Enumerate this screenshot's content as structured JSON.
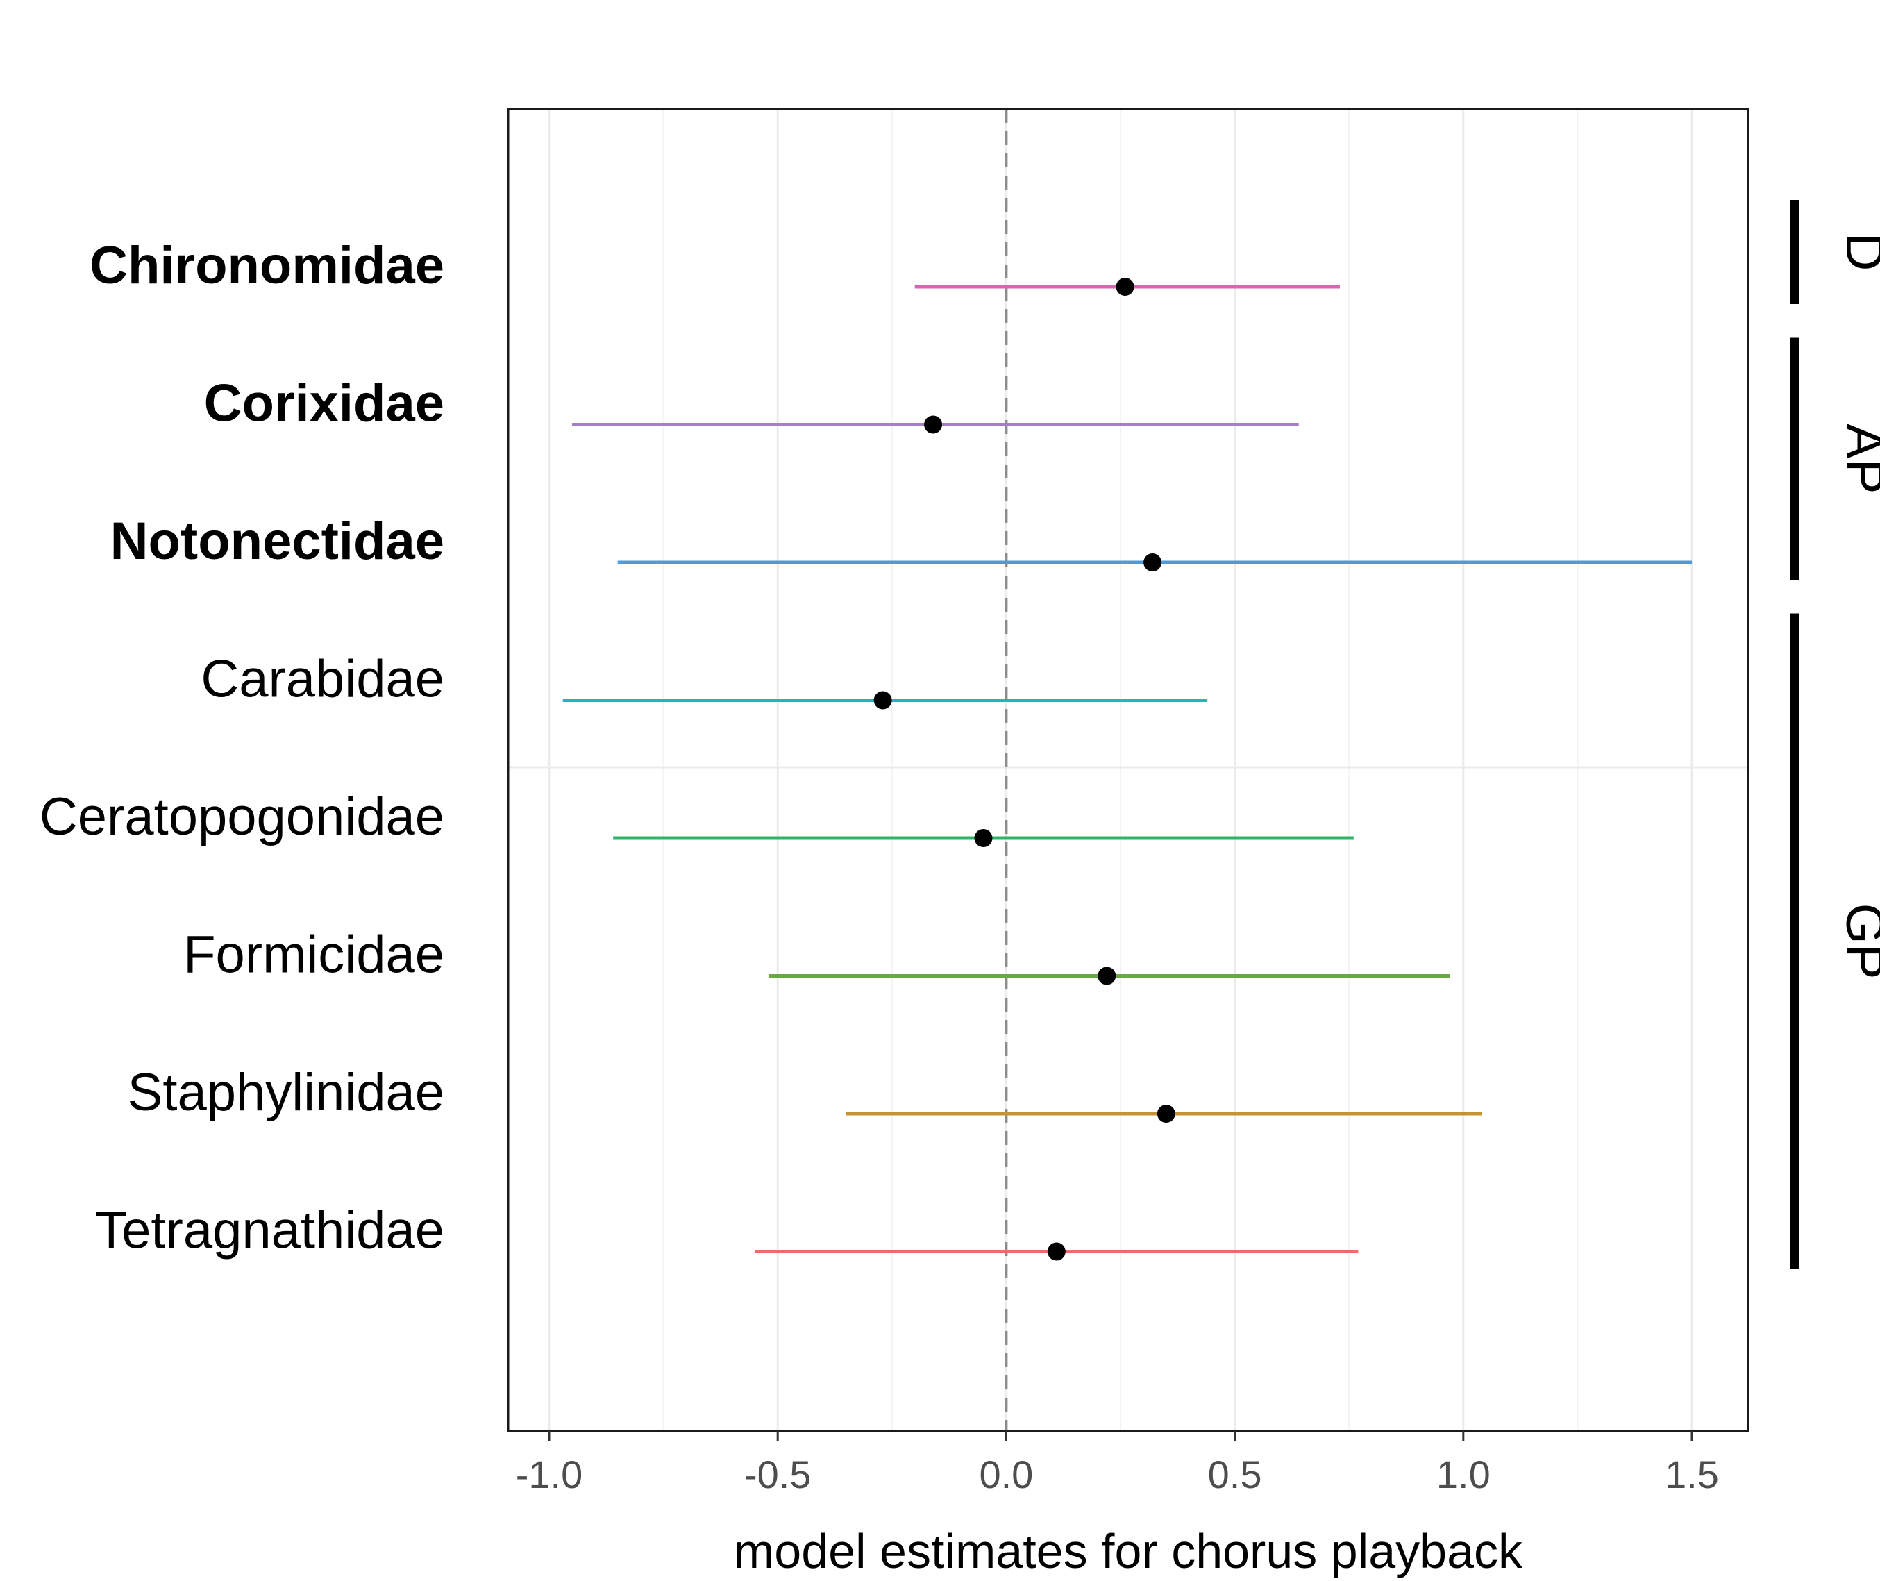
{
  "chart_data": {
    "type": "forest",
    "xlabel": "model estimates for chorus playback",
    "xlim": [
      -1.1,
      1.62
    ],
    "x_ticks": [
      -1.0,
      -0.5,
      0.0,
      0.5,
      1.0,
      1.5
    ],
    "x_tick_labels": [
      "-1.0",
      "-0.5",
      "0.0",
      "0.5",
      "1.0",
      "1.5"
    ],
    "reference_line": 0.0,
    "grid": true,
    "rows": [
      {
        "label": "Chironomidae",
        "bold": true,
        "estimate": 0.26,
        "lower": -0.2,
        "upper": 0.73,
        "color": "#d964b5"
      },
      {
        "label": "Corixidae",
        "bold": true,
        "estimate": -0.16,
        "lower": -0.95,
        "upper": 0.64,
        "color": "#a77fc4"
      },
      {
        "label": "Notonectidae",
        "bold": true,
        "estimate": 0.32,
        "lower": -0.85,
        "upper": 1.5,
        "color": "#4f9bd9"
      },
      {
        "label": "Carabidae",
        "bold": false,
        "estimate": -0.27,
        "lower": -0.97,
        "upper": 0.44,
        "color": "#1fb5c8"
      },
      {
        "label": "Ceratopogonidae",
        "bold": false,
        "estimate": -0.05,
        "lower": -0.86,
        "upper": 0.76,
        "color": "#2eb36b"
      },
      {
        "label": "Formicidae",
        "bold": false,
        "estimate": 0.22,
        "lower": -0.52,
        "upper": 0.97,
        "color": "#6aa843"
      },
      {
        "label": "Staphylinidae",
        "bold": false,
        "estimate": 0.35,
        "lower": -0.35,
        "upper": 1.04,
        "color": "#c79233"
      },
      {
        "label": "Tetragnathidae",
        "bold": false,
        "estimate": 0.11,
        "lower": -0.55,
        "upper": 0.77,
        "color": "#ef6a68"
      }
    ],
    "groups": [
      {
        "label": "D",
        "rows": [
          "Chironomidae"
        ]
      },
      {
        "label": "AP",
        "rows": [
          "Corixidae",
          "Notonectidae"
        ]
      },
      {
        "label": "GP",
        "rows": [
          "Carabidae",
          "Ceratopogonidae",
          "Formicidae",
          "Staphylinidae",
          "Tetragnathidae"
        ]
      }
    ]
  }
}
